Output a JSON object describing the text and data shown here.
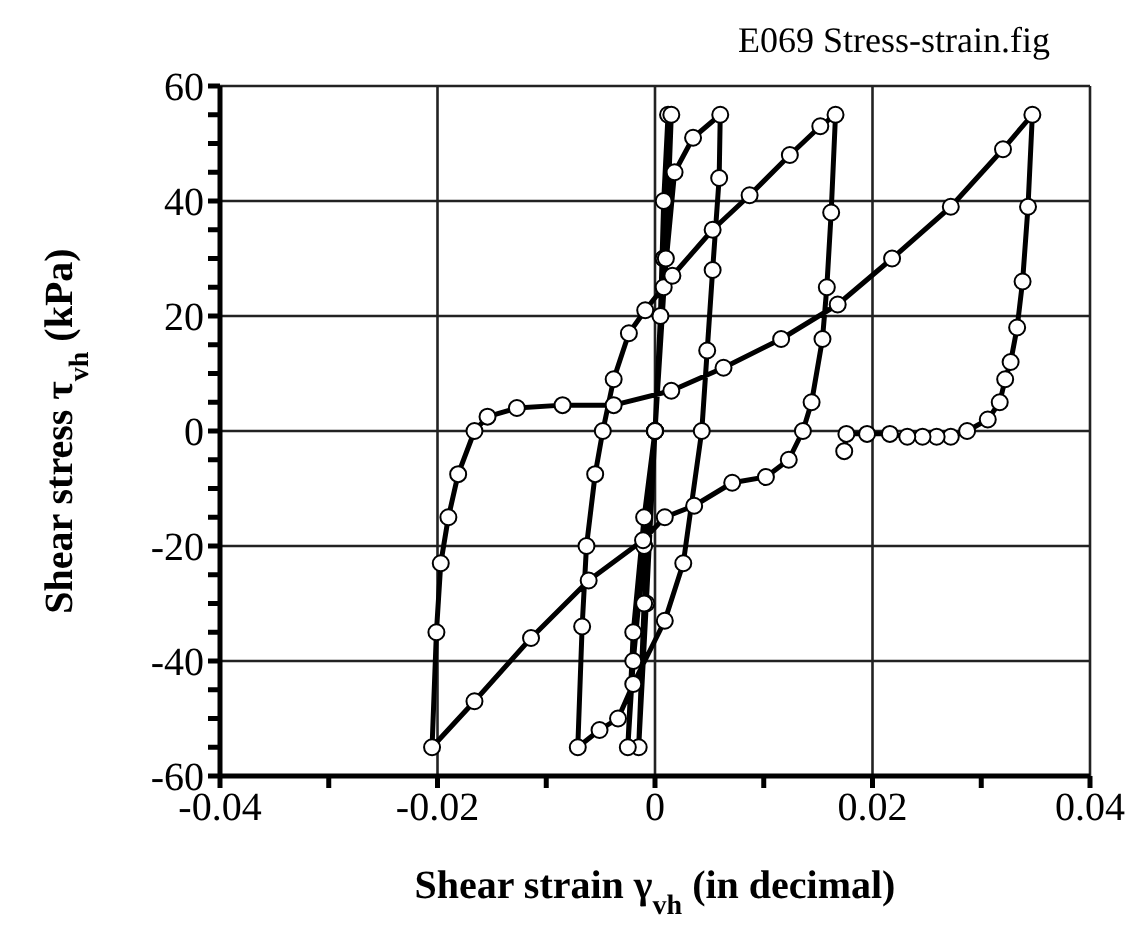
{
  "chart_data": {
    "type": "line",
    "title": "E069 Stress-strain.fig",
    "xlabel": "Shear strain  γ$_{vh}$ (in decimal)",
    "ylabel": "Shear stress τ$_{vh}$  (kPa)",
    "xlim": [
      -0.04,
      0.04
    ],
    "xticks": [
      -0.04,
      {
        "value": -0.03,
        "label": null
      },
      -0.02,
      {
        "value": -0.01,
        "label": null
      },
      0,
      {
        "value": 0.01,
        "label": null
      },
      0.02,
      {
        "value": 0.03,
        "label": null
      },
      0.04
    ],
    "ylim": [
      -60,
      60
    ],
    "yticks": [
      -60,
      {
        "value": -55,
        "label": null
      },
      {
        "value": -50,
        "label": null
      },
      {
        "value": -45,
        "label": null
      },
      -40,
      {
        "value": -35,
        "label": null
      },
      {
        "value": -30,
        "label": null
      },
      {
        "value": -25,
        "label": null
      },
      -20,
      {
        "value": -15,
        "label": null
      },
      {
        "value": -10,
        "label": null
      },
      {
        "value": -5,
        "label": null
      },
      0,
      {
        "value": 5,
        "label": null
      },
      {
        "value": 10,
        "label": null
      },
      {
        "value": 15,
        "label": null
      },
      20,
      {
        "value": 25,
        "label": null
      },
      {
        "value": 30,
        "label": null
      },
      {
        "value": 35,
        "label": null
      },
      40,
      {
        "value": 45,
        "label": null
      },
      {
        "value": 50,
        "label": null
      },
      {
        "value": 55,
        "label": null
      },
      60
    ],
    "grid": true,
    "marker": "circle",
    "line_style": "solid",
    "series": [
      {
        "color": "#000000",
        "x": [
          0,
          0.0005,
          0.0008,
          0.0012,
          0.0008,
          0,
          -0.0008,
          -0.0015,
          -0.001,
          0,
          0.0008,
          0.0015,
          0.001,
          0,
          -0.001,
          -0.002,
          -0.0025,
          -0.002,
          -0.001,
          0,
          0.0008,
          0.0018,
          0.0035,
          0.006,
          0.0059,
          0.0053,
          0.0048,
          0.0043,
          0.0026,
          0.0009,
          -0.002,
          -0.0034,
          -0.0051,
          -0.0071,
          -0.0067,
          -0.0063,
          -0.0055,
          -0.0048,
          -0.0038,
          -0.0024,
          -0.0009,
          0.0016,
          0.0053,
          0.0087,
          0.0124,
          0.0152,
          0.0166,
          0.0162,
          0.0158,
          0.0154,
          0.0144,
          0.0136,
          0.0123,
          0.0102,
          0.0071,
          0.0036,
          0.0009,
          -0.0011,
          -0.0061,
          -0.0114,
          -0.0166,
          -0.0205,
          -0.0201,
          -0.0197,
          -0.019,
          -0.0181,
          -0.0166,
          -0.0154,
          -0.0127,
          -0.0085,
          -0.0038,
          0.0015,
          0.0063,
          0.0116,
          0.0168,
          0.0218,
          0.0272,
          0.032,
          0.0347,
          0.0343,
          0.0338,
          0.0333,
          0.0327,
          0.0322,
          0.0317,
          0.0306,
          0.0287,
          0.0272,
          0.0259,
          0.0246,
          0.0232,
          0.0216,
          0.0195,
          0.0176,
          0.0174
        ],
        "values": [
          0,
          20,
          40,
          55,
          30,
          0,
          -30,
          -55,
          -30,
          0,
          30,
          55,
          30,
          0,
          -20,
          -40,
          -55,
          -35,
          -15,
          0,
          25,
          45,
          51,
          55,
          44,
          28,
          14,
          0,
          -23,
          -33,
          -44,
          -50,
          -52,
          -55,
          -34,
          -20,
          -7.5,
          0,
          9,
          17,
          21,
          27,
          35,
          41,
          48,
          53,
          55,
          38,
          25,
          16,
          5,
          0,
          -5,
          -8,
          -9,
          -13,
          -15,
          -19,
          -26,
          -36,
          -47,
          -55,
          -35,
          -23,
          -15,
          -7.5,
          0,
          2.5,
          4,
          4.5,
          4.5,
          7,
          11,
          16,
          22,
          30,
          39,
          49,
          55,
          39,
          26,
          18,
          12,
          9,
          5,
          2,
          0,
          -1,
          -1,
          -1,
          -1,
          -0.5,
          -0.5,
          -0.5,
          -3.5
        ]
      }
    ]
  }
}
